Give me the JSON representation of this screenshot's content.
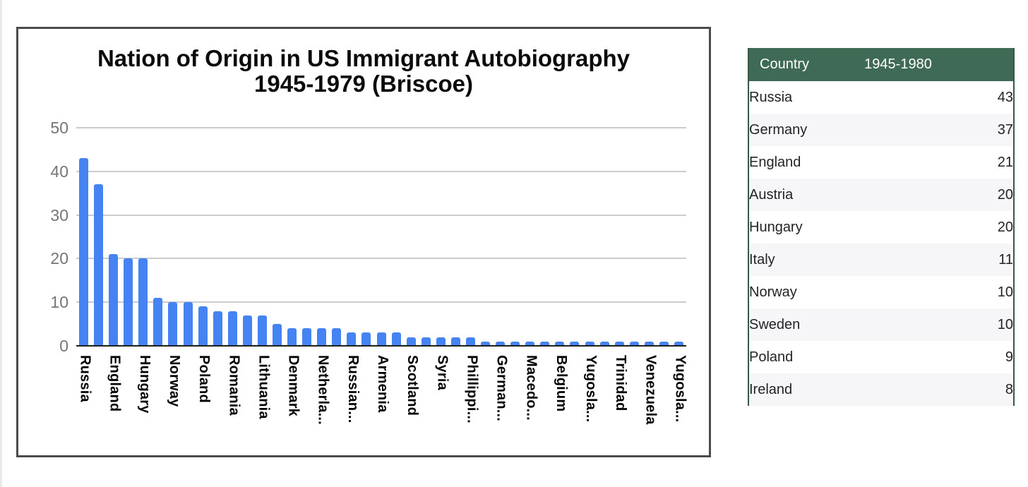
{
  "chart_data": {
    "type": "bar",
    "title": "Nation of Origin in US Immigrant Autobiography 1945-1979 (Briscoe)",
    "title_lines": [
      "Nation of Origin in US Immigrant Autobiography",
      "1945-1979 (Briscoe)"
    ],
    "xlabel": "",
    "ylabel": "",
    "ylim": [
      0,
      50
    ],
    "yticks": [
      0,
      10,
      20,
      30,
      40,
      50
    ],
    "grid": true,
    "legend": "none",
    "bar_color": "#4583f2",
    "categories": [
      "Russia",
      "",
      "England",
      "",
      "Hungary",
      "",
      "Norway",
      "",
      "Poland",
      "",
      "Romania",
      "",
      "Lithuania",
      "",
      "Denmark",
      "",
      "Netherla...",
      "",
      "Russian...",
      "",
      "Armenia",
      "",
      "Scotland",
      "",
      "Syria",
      "",
      "Phillippi...",
      "",
      "German...",
      "",
      "Macedo...",
      "",
      "Belgium",
      "",
      "Yugosla...",
      "",
      "Trinidad",
      "",
      "Venezuela",
      "",
      "Yugosla..."
    ],
    "values": [
      43,
      37,
      21,
      20,
      20,
      11,
      10,
      10,
      9,
      8,
      8,
      7,
      7,
      5,
      4,
      4,
      4,
      4,
      3,
      3,
      3,
      3,
      2,
      2,
      2,
      2,
      2,
      1,
      1,
      1,
      1,
      1,
      1,
      1,
      1,
      1,
      1,
      1,
      1,
      1,
      1
    ]
  },
  "table": {
    "headers": [
      "Country",
      "1945-1980"
    ],
    "header_bg": "#3e6a56",
    "alt_row_bg": "#f6f6f8",
    "rows": [
      {
        "country": "Russia",
        "value": "43"
      },
      {
        "country": "Germany",
        "value": "37"
      },
      {
        "country": "England",
        "value": "21"
      },
      {
        "country": "Austria",
        "value": "20"
      },
      {
        "country": "Hungary",
        "value": "20"
      },
      {
        "country": "Italy",
        "value": "11"
      },
      {
        "country": "Norway",
        "value": "10"
      },
      {
        "country": "Sweden",
        "value": "10"
      },
      {
        "country": "Poland",
        "value": "9"
      },
      {
        "country": "Ireland",
        "value": "8"
      }
    ]
  },
  "colors": {
    "bar": "#4583f2",
    "gridline": "#cccccc",
    "axis_text": "#757575",
    "chart_frame": "#4b4b4b",
    "table_header_bg": "#3e6a56",
    "table_border": "#35594a"
  }
}
